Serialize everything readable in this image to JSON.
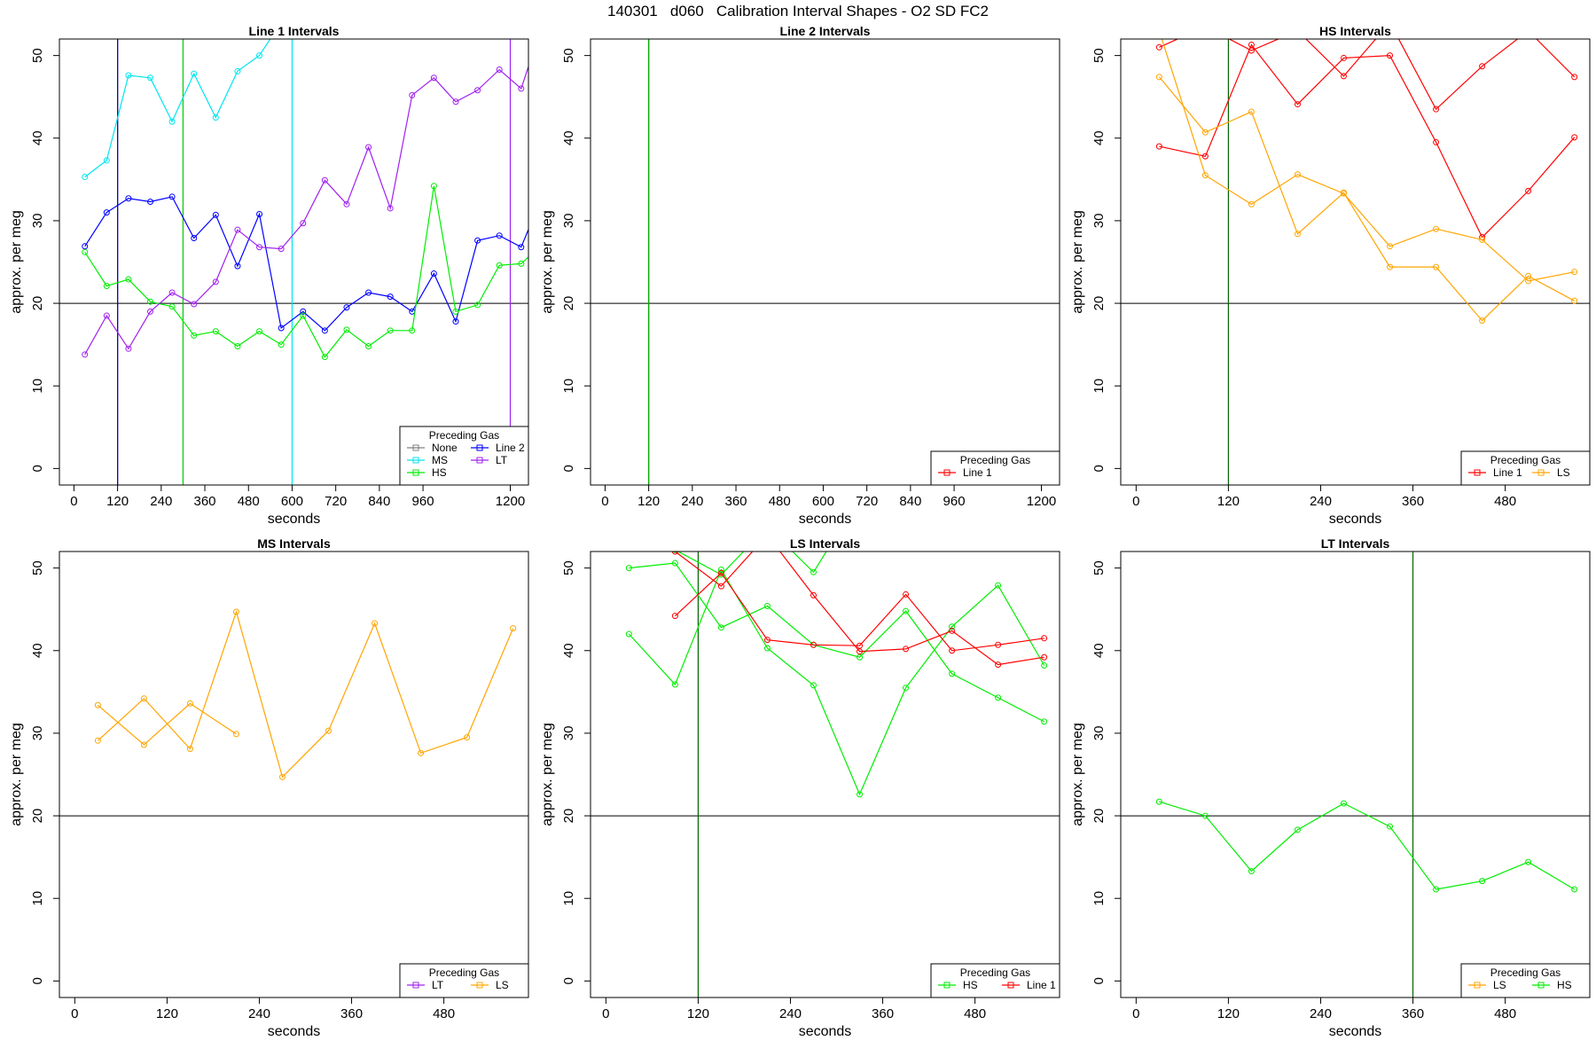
{
  "figure_title": "140301   d060   Calibration Interval Shapes - O2 SD FC2",
  "chart_data": [
    {
      "type": "line",
      "title": "Line 1 Intervals",
      "xlabel": "seconds",
      "ylabel": "approx. per meg",
      "xlim": [
        -40,
        1250
      ],
      "ylim": [
        -2,
        52
      ],
      "xticks": [
        0,
        120,
        240,
        360,
        480,
        600,
        720,
        840,
        960,
        1200
      ],
      "yticks": [
        0,
        10,
        20,
        30,
        40,
        50
      ],
      "hline": 20,
      "vlines": [
        {
          "x": 120,
          "color": "#000000"
        },
        {
          "x": 120,
          "color": "#0000ff"
        },
        {
          "x": 300,
          "color": "#00cc00"
        },
        {
          "x": 600,
          "color": "#00e5ee"
        },
        {
          "x": 1200,
          "color": "#a020f0"
        }
      ],
      "legend": {
        "title": "Preceding Gas",
        "position": "bottom-right",
        "columns": 2,
        "entries": [
          {
            "name": "None",
            "color": "#808080"
          },
          {
            "name": "MS",
            "color": "#00e5ee"
          },
          {
            "name": "HS",
            "color": "#00ee00"
          },
          {
            "name": "Line 2",
            "color": "#0000ff"
          },
          {
            "name": "LT",
            "color": "#a020f0"
          }
        ]
      },
      "series": [
        {
          "name": "MS",
          "color": "#00e5ee",
          "x": [
            30,
            90,
            150,
            210,
            270,
            330,
            390,
            450,
            510,
            570
          ],
          "y": [
            35.3,
            37.3,
            47.6,
            47.3,
            42.0,
            47.8,
            42.5,
            48.1,
            50.0,
            54.0
          ]
        },
        {
          "name": "Line 2",
          "color": "#0000ff",
          "x": [
            30,
            90,
            150,
            210,
            270,
            330,
            390,
            450,
            510,
            570,
            630,
            690,
            750,
            810,
            870,
            930,
            990,
            1050,
            1110,
            1170,
            1230,
            1260
          ],
          "y": [
            26.9,
            31.0,
            32.7,
            32.3,
            32.9,
            27.9,
            30.7,
            24.5,
            30.8,
            17.0,
            19.0,
            16.7,
            19.5,
            21.3,
            20.8,
            19.0,
            23.6,
            17.8,
            27.6,
            28.2,
            26.8,
            30.0
          ]
        },
        {
          "name": "HS",
          "color": "#00ee00",
          "x": [
            30,
            90,
            150,
            210,
            270,
            330,
            390,
            450,
            510,
            570,
            630,
            690,
            750,
            810,
            870,
            930,
            990,
            1050,
            1110,
            1170,
            1230,
            1260
          ],
          "y": [
            26.2,
            22.1,
            22.9,
            20.2,
            19.6,
            16.1,
            16.6,
            14.8,
            16.6,
            15.0,
            18.5,
            13.5,
            16.8,
            14.8,
            16.7,
            16.7,
            34.2,
            19.0,
            19.8,
            24.6,
            24.8,
            26.0
          ]
        },
        {
          "name": "LT",
          "color": "#a020f0",
          "x": [
            30,
            90,
            150,
            210,
            270,
            330,
            390,
            450,
            510,
            570,
            630,
            690,
            750,
            810,
            870,
            930,
            990,
            1050,
            1110,
            1170,
            1230,
            1260
          ],
          "y": [
            13.8,
            18.5,
            14.5,
            19.0,
            21.3,
            19.9,
            22.6,
            28.9,
            26.8,
            26.6,
            29.7,
            34.9,
            32.0,
            38.9,
            31.5,
            45.2,
            47.3,
            44.4,
            45.8,
            48.3,
            46.0,
            50.0
          ]
        }
      ]
    },
    {
      "type": "line",
      "title": "Line 2 Intervals",
      "xlabel": "seconds",
      "ylabel": "approx. per meg",
      "xlim": [
        -40,
        1250
      ],
      "ylim": [
        -2,
        52
      ],
      "xticks": [
        0,
        120,
        240,
        360,
        480,
        600,
        720,
        840,
        960,
        1200
      ],
      "yticks": [
        0,
        10,
        20,
        30,
        40,
        50
      ],
      "hline": 20,
      "vlines": [
        {
          "x": 120,
          "color": "#ff0000"
        },
        {
          "x": 120,
          "color": "#00aa00"
        }
      ],
      "legend": {
        "title": "Preceding Gas",
        "position": "bottom-right",
        "columns": 1,
        "entries": [
          {
            "name": "Line 1",
            "color": "#ff0000"
          }
        ]
      },
      "series": []
    },
    {
      "type": "line",
      "title": "HS Intervals",
      "xlabel": "seconds",
      "ylabel": "approx. per meg",
      "xlim": [
        -20,
        590
      ],
      "ylim": [
        -2,
        52
      ],
      "xticks": [
        0,
        120,
        240,
        360,
        480
      ],
      "yticks": [
        0,
        10,
        20,
        30,
        40,
        50
      ],
      "hline": 20,
      "vlines": [
        {
          "x": 120,
          "color": "#006400"
        }
      ],
      "legend": {
        "title": "Preceding Gas",
        "position": "bottom-right",
        "columns": 2,
        "entries": [
          {
            "name": "Line 1",
            "color": "#ff0000"
          },
          {
            "name": "LS",
            "color": "#ffa500"
          }
        ]
      },
      "series": [
        {
          "name": "Line 1 (a)",
          "color": "#ff0000",
          "x": [
            30,
            90,
            150,
            210,
            270,
            330,
            390,
            450,
            510,
            570
          ],
          "y": [
            51.0,
            53.5,
            50.6,
            53.0,
            47.5,
            54.0,
            43.5,
            48.7,
            53.0,
            47.4
          ]
        },
        {
          "name": "Line 1 (b)",
          "color": "#ff0000",
          "x": [
            30,
            90,
            150,
            210,
            270,
            330,
            390,
            450,
            510,
            570
          ],
          "y": [
            39.0,
            37.8,
            51.3,
            44.1,
            49.7,
            50.0,
            39.5,
            28.0,
            33.6,
            40.1
          ]
        },
        {
          "name": "LS (a)",
          "color": "#ffa500",
          "x": [
            30,
            90,
            150,
            210,
            270,
            330,
            390,
            450,
            510,
            570
          ],
          "y": [
            47.4,
            40.7,
            43.2,
            28.4,
            33.4,
            24.4,
            24.4,
            17.9,
            23.3,
            20.3
          ]
        },
        {
          "name": "LS (b)",
          "color": "#ffa500",
          "x": [
            30,
            90,
            150,
            210,
            270,
            330,
            390,
            450,
            510,
            570
          ],
          "y": [
            53.0,
            35.5,
            32.0,
            35.6,
            33.3,
            26.9,
            29.0,
            27.7,
            22.7,
            23.8
          ]
        }
      ]
    },
    {
      "type": "line",
      "title": "MS Intervals",
      "xlabel": "seconds",
      "ylabel": "approx. per meg",
      "xlim": [
        -20,
        590
      ],
      "ylim": [
        -2,
        52
      ],
      "xticks": [
        0,
        120,
        240,
        360,
        480
      ],
      "yticks": [
        0,
        10,
        20,
        30,
        40,
        50
      ],
      "hline": 20,
      "vlines": [],
      "legend": {
        "title": "Preceding Gas",
        "position": "bottom-right",
        "columns": 2,
        "entries": [
          {
            "name": "LT",
            "color": "#a020f0"
          },
          {
            "name": "LS",
            "color": "#ffa500"
          }
        ]
      },
      "series": [
        {
          "name": "LS (a)",
          "color": "#ffa500",
          "x": [
            30,
            90,
            150,
            210
          ],
          "y": [
            33.4,
            28.6,
            33.6,
            29.9
          ]
        },
        {
          "name": "LS (b)",
          "color": "#ffa500",
          "x": [
            30,
            90,
            150,
            210,
            270,
            330,
            390,
            450,
            510,
            570
          ],
          "y": [
            29.1,
            34.2,
            28.1,
            44.7,
            24.7,
            30.3,
            43.3,
            27.6,
            29.5,
            42.7
          ]
        }
      ]
    },
    {
      "type": "line",
      "title": "LS Intervals",
      "xlabel": "seconds",
      "ylabel": "approx. per meg",
      "xlim": [
        -20,
        590
      ],
      "ylim": [
        -2,
        52
      ],
      "xticks": [
        0,
        120,
        240,
        360,
        480
      ],
      "yticks": [
        0,
        10,
        20,
        30,
        40,
        50
      ],
      "hline": 20,
      "vlines": [
        {
          "x": 120,
          "color": "#006400"
        }
      ],
      "legend": {
        "title": "Preceding Gas",
        "position": "bottom-right",
        "columns": 2,
        "entries": [
          {
            "name": "HS",
            "color": "#00ee00"
          },
          {
            "name": "Line 1",
            "color": "#ff0000"
          }
        ]
      },
      "series": [
        {
          "name": "HS (a)",
          "color": "#00ee00",
          "x": [
            30,
            90,
            150,
            210,
            270,
            330,
            390,
            450,
            510,
            570
          ],
          "y": [
            50.0,
            50.6,
            42.8,
            45.4,
            40.7,
            39.2,
            44.8,
            37.2,
            34.3,
            31.4
          ]
        },
        {
          "name": "HS (b)",
          "color": "#00ee00",
          "x": [
            30,
            90,
            150,
            210,
            270,
            330,
            390,
            450,
            510,
            570
          ],
          "y": [
            42.0,
            35.9,
            49.8,
            40.3,
            35.8,
            22.6,
            35.5,
            42.9,
            47.9,
            38.2
          ]
        },
        {
          "name": "HS (c)",
          "color": "#00ee00",
          "x": [
            90,
            150,
            210,
            270,
            300
          ],
          "y": [
            52.2,
            49.2,
            55.0,
            49.5,
            54.0
          ]
        },
        {
          "name": "Line 1 (a)",
          "color": "#ff0000",
          "x": [
            90,
            150,
            210,
            270,
            330,
            390,
            450,
            510,
            570
          ],
          "y": [
            44.2,
            49.4,
            41.3,
            40.7,
            40.6,
            46.8,
            40.0,
            40.7,
            41.5
          ]
        },
        {
          "name": "Line 1 (b)",
          "color": "#ff0000",
          "x": [
            75,
            90,
            150,
            210,
            270,
            330,
            390,
            450,
            510,
            570
          ],
          "y": [
            54.0,
            52.0,
            47.8,
            54.0,
            46.7,
            39.9,
            40.2,
            42.4,
            38.3,
            39.2
          ]
        }
      ]
    },
    {
      "type": "line",
      "title": "LT Intervals",
      "xlabel": "seconds",
      "ylabel": "approx. per meg",
      "xlim": [
        -20,
        590
      ],
      "ylim": [
        -2,
        52
      ],
      "xticks": [
        0,
        120,
        240,
        360,
        480
      ],
      "yticks": [
        0,
        10,
        20,
        30,
        40,
        50
      ],
      "hline": 20,
      "vlines": [
        {
          "x": 360,
          "color": "#006400"
        }
      ],
      "legend": {
        "title": "Preceding Gas",
        "position": "bottom-right",
        "columns": 2,
        "entries": [
          {
            "name": "LS",
            "color": "#ffa500"
          },
          {
            "name": "HS",
            "color": "#00ee00"
          }
        ]
      },
      "series": [
        {
          "name": "HS",
          "color": "#00ee00",
          "x": [
            30,
            90,
            150,
            210,
            270,
            330,
            390,
            450,
            510,
            570
          ],
          "y": [
            21.7,
            20.0,
            13.3,
            18.3,
            21.5,
            18.7,
            11.1,
            12.1,
            14.4,
            11.1
          ]
        }
      ]
    }
  ]
}
